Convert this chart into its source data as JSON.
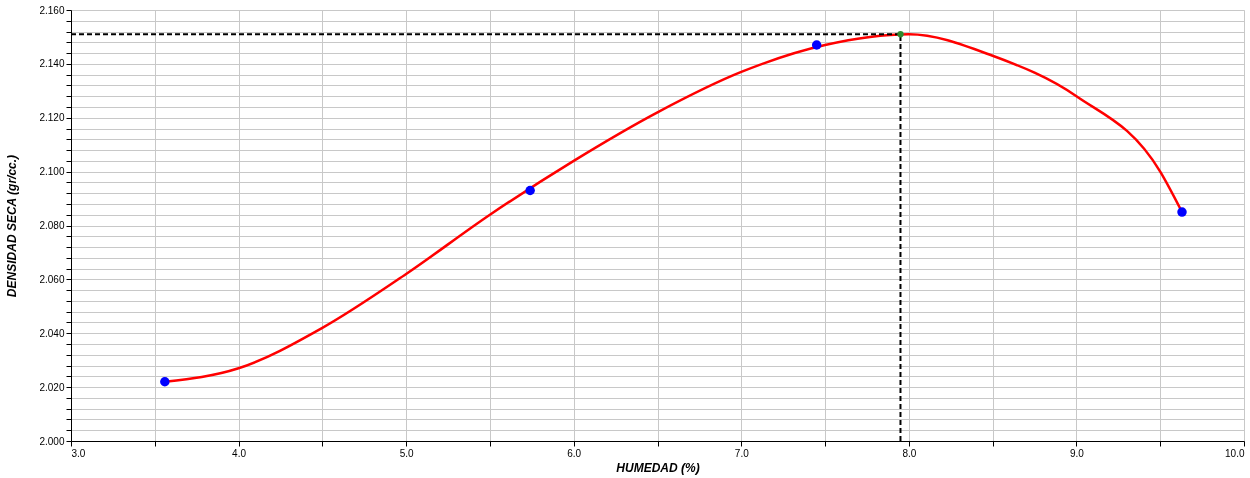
{
  "chart_data": {
    "type": "scatter",
    "xlabel": "HUMEDAD  (%)",
    "ylabel": "DENSIDAD SECA  (gr/cc.)",
    "xlim": [
      3.0,
      10.0
    ],
    "xticks": [
      {
        "value": 3,
        "label": "3.0"
      },
      {
        "value": 3.5,
        "label": null
      },
      {
        "value": 4,
        "label": "4.0"
      },
      {
        "value": 4.5,
        "label": null
      },
      {
        "value": 5,
        "label": "5.0"
      },
      {
        "value": 5.5,
        "label": null
      },
      {
        "value": 6,
        "label": "6.0"
      },
      {
        "value": 6.5,
        "label": null
      },
      {
        "value": 7,
        "label": "7.0"
      },
      {
        "value": 7.5,
        "label": null
      },
      {
        "value": 8,
        "label": "8.0"
      },
      {
        "value": 8.5,
        "label": null
      },
      {
        "value": 9,
        "label": "9.0"
      },
      {
        "value": 9.5,
        "label": null
      },
      {
        "value": 10,
        "label": "10.0"
      }
    ],
    "ylim": [
      2.0,
      2.16
    ],
    "yticks": [
      {
        "value": 2.0,
        "label": "2.000"
      },
      {
        "value": 2.004,
        "label": null
      },
      {
        "value": 2.008,
        "label": null
      },
      {
        "value": 2.012,
        "label": null
      },
      {
        "value": 2.016,
        "label": null
      },
      {
        "value": 2.02,
        "label": "2.020"
      },
      {
        "value": 2.024,
        "label": null
      },
      {
        "value": 2.028,
        "label": null
      },
      {
        "value": 2.032,
        "label": null
      },
      {
        "value": 2.036,
        "label": null
      },
      {
        "value": 2.04,
        "label": "2.040"
      },
      {
        "value": 2.044,
        "label": null
      },
      {
        "value": 2.048,
        "label": null
      },
      {
        "value": 2.052,
        "label": null
      },
      {
        "value": 2.056,
        "label": null
      },
      {
        "value": 2.06,
        "label": "2.060"
      },
      {
        "value": 2.064,
        "label": null
      },
      {
        "value": 2.068,
        "label": null
      },
      {
        "value": 2.072,
        "label": null
      },
      {
        "value": 2.076,
        "label": null
      },
      {
        "value": 2.08,
        "label": "2.080"
      },
      {
        "value": 2.084,
        "label": null
      },
      {
        "value": 2.088,
        "label": null
      },
      {
        "value": 2.092,
        "label": null
      },
      {
        "value": 2.096,
        "label": null
      },
      {
        "value": 2.1,
        "label": "2.100"
      },
      {
        "value": 2.104,
        "label": null
      },
      {
        "value": 2.108,
        "label": null
      },
      {
        "value": 2.112,
        "label": null
      },
      {
        "value": 2.116,
        "label": null
      },
      {
        "value": 2.12,
        "label": "2.120"
      },
      {
        "value": 2.124,
        "label": null
      },
      {
        "value": 2.128,
        "label": null
      },
      {
        "value": 2.132,
        "label": null
      },
      {
        "value": 2.136,
        "label": null
      },
      {
        "value": 2.14,
        "label": "2.140"
      },
      {
        "value": 2.144,
        "label": null
      },
      {
        "value": 2.148,
        "label": null
      },
      {
        "value": 2.152,
        "label": null
      },
      {
        "value": 2.156,
        "label": null
      },
      {
        "value": 2.16,
        "label": "2.160"
      }
    ],
    "grid": true,
    "marker": "circle",
    "series": [
      {
        "type": "line",
        "color": "#ff0000",
        "marker": "none",
        "line_style": "solid",
        "x": [
          3.56,
          4.0,
          4.5,
          5.0,
          5.5,
          6.0,
          6.5,
          7.0,
          7.5,
          8.0,
          8.5,
          9.0,
          9.5,
          9.63
        ],
        "values": [
          2.022,
          2.027,
          2.042,
          2.062,
          2.084,
          2.104,
          2.122,
          2.137,
          2.147,
          2.151,
          2.143,
          2.128,
          2.1,
          2.085
        ]
      },
      {
        "color": "#0000ff",
        "x": [
          3.56,
          5.74,
          7.45,
          9.63
        ],
        "values": [
          2.022,
          2.093,
          2.147,
          2.085
        ]
      },
      {
        "color": "#2e8b2e",
        "x": [
          7.95
        ],
        "values": [
          2.151
        ]
      }
    ],
    "ref_lines": [
      {
        "axis": "x",
        "value": 7.95,
        "color": "#000000",
        "line_style": "dashed"
      },
      {
        "axis": "y",
        "value": 2.151,
        "color": "#000000",
        "line_style": "dashed"
      }
    ]
  }
}
